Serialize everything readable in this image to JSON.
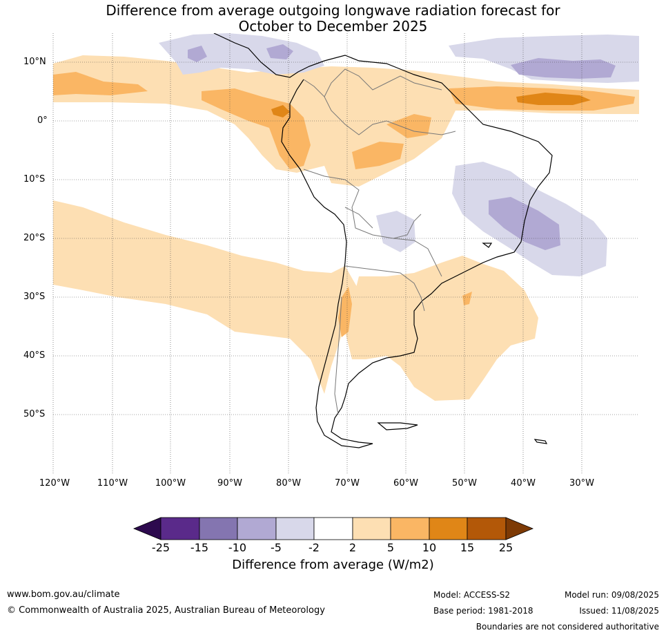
{
  "title_line1": "Difference from average outgoing longwave radiation forecast for",
  "title_line2": "October to December 2025",
  "lat_labels": [
    "10°N",
    "0°",
    "10°S",
    "20°S",
    "30°S",
    "40°S",
    "50°S"
  ],
  "lon_labels": [
    "120°W",
    "110°W",
    "100°W",
    "90°W",
    "80°W",
    "70°W",
    "60°W",
    "50°W",
    "40°W",
    "30°W"
  ],
  "colorbar": {
    "ticks": [
      "-25",
      "-15",
      "-10",
      "-5",
      "-2",
      "2",
      "5",
      "10",
      "15",
      "25"
    ],
    "colors": [
      "#2d0a4e",
      "#5a2a8a",
      "#8475b0",
      "#b1a9d3",
      "#d8d8ea",
      "#ffffff",
      "#fddfb3",
      "#fab664",
      "#e08617",
      "#b35808",
      "#7d3a05"
    ],
    "label": "Difference from average (W/m2)"
  },
  "footer": {
    "website": "www.bom.gov.au/climate",
    "copyright": "© Commonwealth of Australia 2025, Australian Bureau of Meteorology",
    "model": "Model: ACCESS-S2",
    "model_run": "Model run: 09/08/2025",
    "base_period": "Base period: 1981-2018",
    "issued": "Issued: 11/08/2025",
    "disclaimer": "Boundaries are not considered authoritative"
  }
}
